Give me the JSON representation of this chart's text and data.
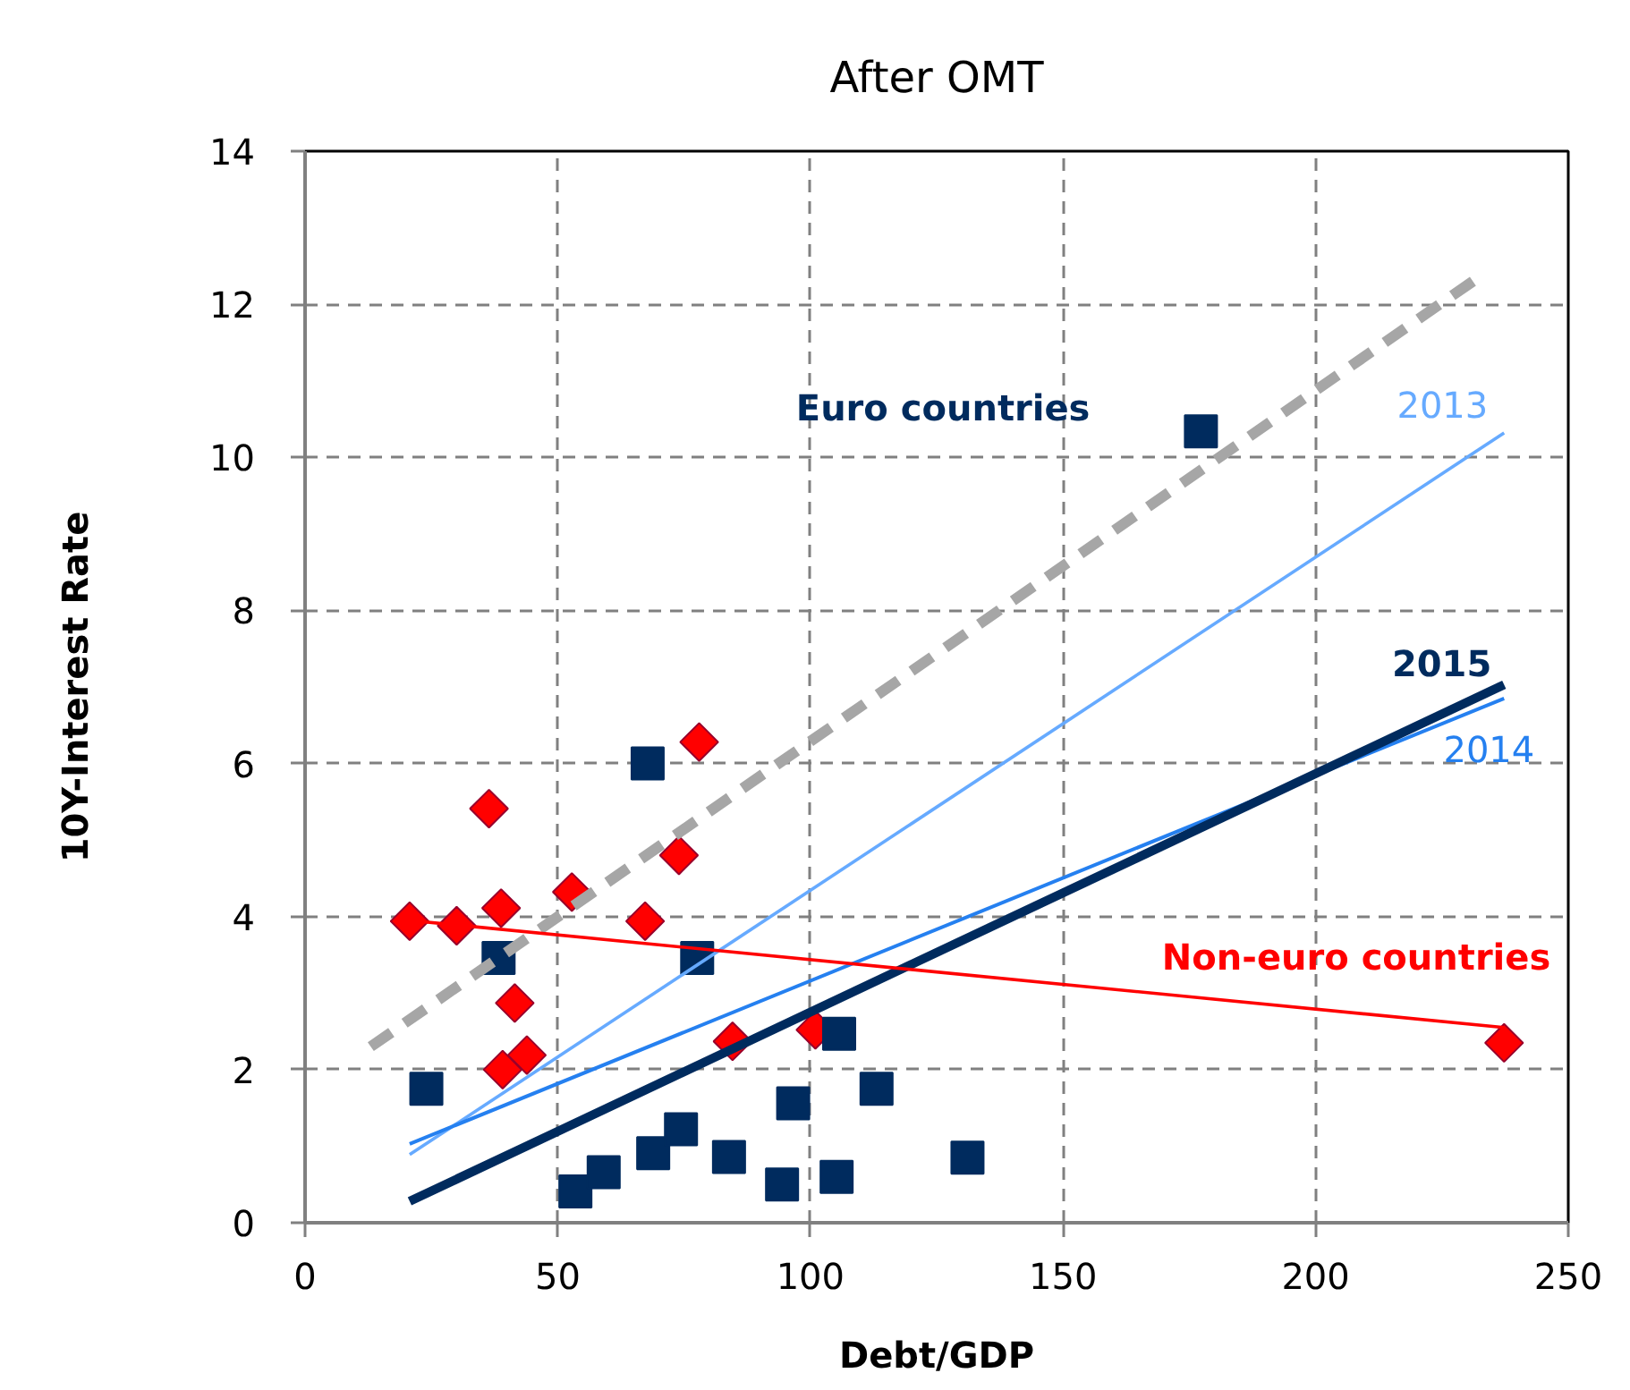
{
  "chart_data": {
    "type": "scatter",
    "title": "After OMT",
    "xlabel": "Debt/GDP",
    "ylabel": "10Y-Interest Rate",
    "xlim": [
      0,
      250
    ],
    "xticks": [
      0,
      50,
      100,
      150,
      200,
      250
    ],
    "ylim": [
      0,
      14
    ],
    "yticks": [
      0,
      2,
      4,
      6,
      8,
      10,
      12,
      14
    ],
    "grid": true,
    "series": [
      {
        "name": "Non-euro countries",
        "marker": "diamond",
        "color": "#ff0000",
        "x": [
          20.7,
          30.0,
          36.4,
          38.8,
          41.5,
          39.1,
          43.9,
          52.8,
          67.3,
          74.0,
          78.0,
          84.6,
          101.0,
          237.3
        ],
        "values": [
          3.94,
          3.88,
          5.41,
          4.11,
          2.87,
          2.0,
          2.19,
          4.32,
          3.94,
          4.8,
          6.28,
          2.37,
          2.52,
          2.35
        ]
      },
      {
        "name": "Euro countries",
        "marker": "square",
        "color": "#002b5e",
        "x": [
          24.0,
          38.3,
          67.8,
          77.6,
          105.7,
          113.1,
          96.6,
          53.5,
          59.1,
          68.9,
          74.4,
          83.9,
          94.4,
          105.2,
          131.1,
          177.3
        ],
        "values": [
          1.75,
          3.46,
          6.0,
          3.46,
          2.47,
          1.75,
          1.56,
          0.41,
          0.66,
          0.91,
          1.22,
          0.86,
          0.5,
          0.6,
          0.85,
          10.34
        ]
      },
      {
        "type": "line",
        "marker": "none",
        "line_style": "dashed",
        "color": "#a6a6a6",
        "x": [
          13.0,
          233.3
        ],
        "values": [
          2.3,
          12.4
        ]
      },
      {
        "name": "2013",
        "type": "line",
        "marker": "none",
        "line_style": "solid",
        "color": "#66aaff",
        "x": [
          20.7,
          237.3
        ],
        "values": [
          0.89,
          10.32
        ]
      },
      {
        "name": "2014",
        "type": "line",
        "marker": "none",
        "line_style": "solid",
        "color": "#2580f0",
        "x": [
          20.7,
          237.3
        ],
        "values": [
          1.03,
          6.85
        ]
      },
      {
        "name": "2015",
        "type": "line",
        "marker": "none",
        "line_style": "solid",
        "color": "#002b5e",
        "x": [
          20.7,
          237.3
        ],
        "values": [
          0.28,
          7.03
        ]
      },
      {
        "type": "line",
        "marker": "none",
        "line_style": "solid",
        "color": "#ff0000",
        "x": [
          20.7,
          237.3
        ],
        "values": [
          3.95,
          2.55
        ]
      }
    ]
  }
}
